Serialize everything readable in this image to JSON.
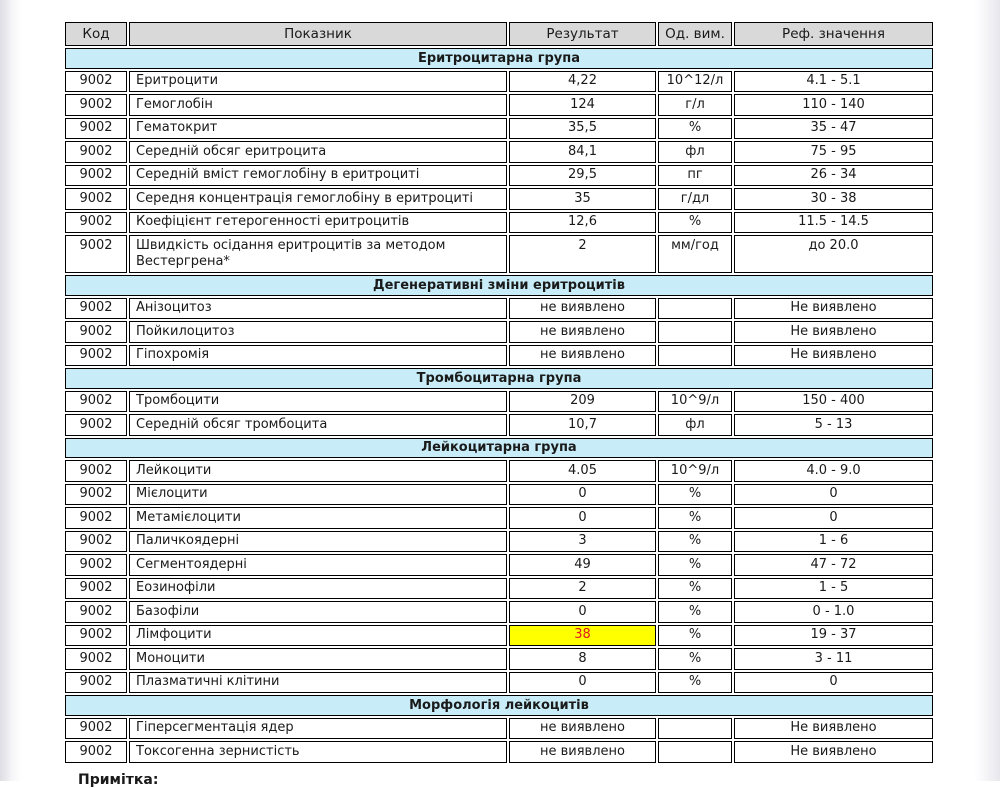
{
  "note": {
    "label": "Примітка:"
  },
  "colors": {
    "column_header_bg": "#d9d9d9",
    "section_header_bg": "#c8edf8",
    "highlight_bg": "#ffff00",
    "highlight_text": "#e01b1b",
    "border": "#000000"
  },
  "table": {
    "columns": [
      "Код",
      "Показник",
      "Результат",
      "Од. вим.",
      "Реф. значення"
    ],
    "sections": [
      {
        "title": "Еритроцитарна група",
        "rows": [
          {
            "code": "9002",
            "name": "Еритроцити",
            "result": "4,22",
            "unit": "10^12/л",
            "ref": "4.1 - 5.1"
          },
          {
            "code": "9002",
            "name": "Гемоглобін",
            "result": "124",
            "unit": "г/л",
            "ref": "110 - 140"
          },
          {
            "code": "9002",
            "name": "Гематокрит",
            "result": "35,5",
            "unit": "%",
            "ref": "35 - 47"
          },
          {
            "code": "9002",
            "name": "Середній обсяг еритроцита",
            "result": "84,1",
            "unit": "фл",
            "ref": "75 - 95"
          },
          {
            "code": "9002",
            "name": "Середній вміст гемоглобіну в еритроциті",
            "result": "29,5",
            "unit": "пг",
            "ref": "26 - 34"
          },
          {
            "code": "9002",
            "name": "Середня концентрація гемоглобіну в еритроциті",
            "result": "35",
            "unit": "г/дл",
            "ref": "30 - 38"
          },
          {
            "code": "9002",
            "name": "Коефіцієнт гетерогенності еритроцитів",
            "result": "12,6",
            "unit": "%",
            "ref": "11.5 - 14.5"
          },
          {
            "code": "9002",
            "name": "Швидкість осідання еритроцитів за методом Вестергрена*",
            "result": "2",
            "unit": "мм/год",
            "ref": "до 20.0"
          }
        ]
      },
      {
        "title": "Дегенеративні зміни еритроцитів",
        "rows": [
          {
            "code": "9002",
            "name": "Анізоцитоз",
            "result": "не виявлено",
            "unit": "",
            "ref": "Не виявлено"
          },
          {
            "code": "9002",
            "name": "Пойкилоцитоз",
            "result": "не виявлено",
            "unit": "",
            "ref": "Не виявлено"
          },
          {
            "code": "9002",
            "name": "Гіпохромія",
            "result": "не виявлено",
            "unit": "",
            "ref": "Не виявлено"
          }
        ]
      },
      {
        "title": "Тромбоцитарна група",
        "rows": [
          {
            "code": "9002",
            "name": "Тромбоцити",
            "result": "209",
            "unit": "10^9/л",
            "ref": "150 - 400"
          },
          {
            "code": "9002",
            "name": "Середній обсяг тромбоцита",
            "result": "10,7",
            "unit": "фл",
            "ref": "5 - 13"
          }
        ]
      },
      {
        "title": "Лейкоцитарна група",
        "rows": [
          {
            "code": "9002",
            "name": "Лейкоцити",
            "result": "4.05",
            "unit": "10^9/л",
            "ref": "4.0 - 9.0"
          },
          {
            "code": "9002",
            "name": "Мієлоцити",
            "result": "0",
            "unit": "%",
            "ref": "0"
          },
          {
            "code": "9002",
            "name": "Метамієлоцити",
            "result": "0",
            "unit": "%",
            "ref": "0"
          },
          {
            "code": "9002",
            "name": "Паличкоядерні",
            "result": "3",
            "unit": "%",
            "ref": "1 - 6"
          },
          {
            "code": "9002",
            "name": "Сегментоядерні",
            "result": "49",
            "unit": "%",
            "ref": "47 - 72"
          },
          {
            "code": "9002",
            "name": "Еозинофіли",
            "result": "2",
            "unit": "%",
            "ref": "1 - 5"
          },
          {
            "code": "9002",
            "name": "Базофіли",
            "result": "0",
            "unit": "%",
            "ref": "0 - 1.0"
          },
          {
            "code": "9002",
            "name": "Лімфоцити",
            "result": "38",
            "unit": "%",
            "ref": "19 - 37",
            "highlight": true
          },
          {
            "code": "9002",
            "name": "Моноцити",
            "result": "8",
            "unit": "%",
            "ref": "3 - 11"
          },
          {
            "code": "9002",
            "name": "Плазматичні клітини",
            "result": "0",
            "unit": "%",
            "ref": "0"
          }
        ]
      },
      {
        "title": "Морфологія лейкоцитів",
        "rows": [
          {
            "code": "9002",
            "name": "Гіперсегментація ядер",
            "result": "не виявлено",
            "unit": "",
            "ref": "Не виявлено"
          },
          {
            "code": "9002",
            "name": "Токсогенна зернистість",
            "result": "не виявлено",
            "unit": "",
            "ref": "Не виявлено"
          }
        ]
      }
    ]
  }
}
